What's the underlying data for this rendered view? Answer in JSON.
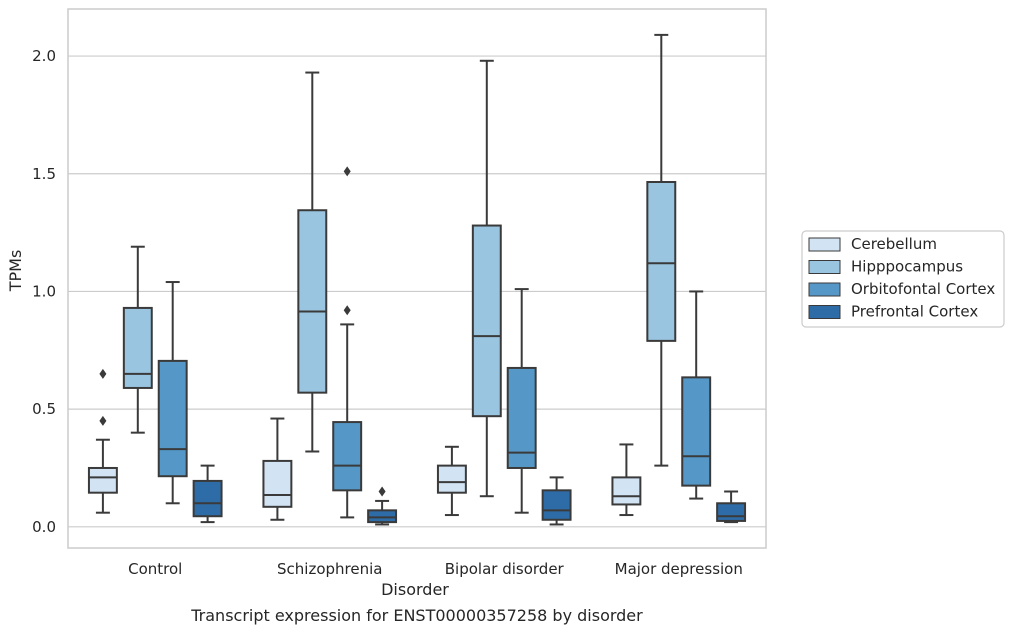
{
  "caption": "Transcript expression for ENST00000357258 by disorder",
  "chart_data": {
    "type": "box",
    "xlabel": "Disorder",
    "ylabel": "TPMs",
    "ylim": [
      -0.09,
      2.2
    ],
    "yticks": [
      0.0,
      0.5,
      1.0,
      1.5,
      2.0
    ],
    "ytick_labels": [
      "0.0",
      "0.5",
      "1.0",
      "1.5",
      "2.0"
    ],
    "grid": "horizontal",
    "legend_position": "right",
    "categories": [
      "Control",
      "Schizophrenia",
      "Bipolar disorder",
      "Major depression"
    ],
    "series": [
      {
        "name": "Cerebellum",
        "color": "#d2e3f3",
        "boxes": [
          {
            "whisker_low": 0.06,
            "q1": 0.145,
            "median": 0.21,
            "q3": 0.25,
            "whisker_high": 0.37,
            "outliers": [
              0.45,
              0.65
            ]
          },
          {
            "whisker_low": 0.03,
            "q1": 0.085,
            "median": 0.135,
            "q3": 0.28,
            "whisker_high": 0.46,
            "outliers": []
          },
          {
            "whisker_low": 0.05,
            "q1": 0.145,
            "median": 0.19,
            "q3": 0.26,
            "whisker_high": 0.34,
            "outliers": []
          },
          {
            "whisker_low": 0.05,
            "q1": 0.095,
            "median": 0.13,
            "q3": 0.21,
            "whisker_high": 0.35,
            "outliers": []
          }
        ]
      },
      {
        "name": "Hipppocampus",
        "color": "#9ac5e0",
        "boxes": [
          {
            "whisker_low": 0.4,
            "q1": 0.59,
            "median": 0.65,
            "q3": 0.93,
            "whisker_high": 1.19,
            "outliers": []
          },
          {
            "whisker_low": 0.32,
            "q1": 0.57,
            "median": 0.915,
            "q3": 1.345,
            "whisker_high": 1.93,
            "outliers": []
          },
          {
            "whisker_low": 0.13,
            "q1": 0.47,
            "median": 0.81,
            "q3": 1.28,
            "whisker_high": 1.98,
            "outliers": []
          },
          {
            "whisker_low": 0.26,
            "q1": 0.79,
            "median": 1.12,
            "q3": 1.465,
            "whisker_high": 2.09,
            "outliers": []
          }
        ]
      },
      {
        "name": "Orbitofontal Cortex",
        "color": "#5598c8",
        "boxes": [
          {
            "whisker_low": 0.1,
            "q1": 0.215,
            "median": 0.33,
            "q3": 0.705,
            "whisker_high": 1.04,
            "outliers": []
          },
          {
            "whisker_low": 0.04,
            "q1": 0.155,
            "median": 0.26,
            "q3": 0.445,
            "whisker_high": 0.86,
            "outliers": [
              0.92,
              1.51
            ]
          },
          {
            "whisker_low": 0.06,
            "q1": 0.25,
            "median": 0.315,
            "q3": 0.675,
            "whisker_high": 1.01,
            "outliers": []
          },
          {
            "whisker_low": 0.12,
            "q1": 0.175,
            "median": 0.3,
            "q3": 0.635,
            "whisker_high": 1.0,
            "outliers": []
          }
        ]
      },
      {
        "name": "Prefrontal Cortex",
        "color": "#2e6ca8",
        "boxes": [
          {
            "whisker_low": 0.02,
            "q1": 0.045,
            "median": 0.1,
            "q3": 0.195,
            "whisker_high": 0.26,
            "outliers": []
          },
          {
            "whisker_low": 0.01,
            "q1": 0.02,
            "median": 0.04,
            "q3": 0.07,
            "whisker_high": 0.11,
            "outliers": [
              0.15
            ]
          },
          {
            "whisker_low": 0.01,
            "q1": 0.03,
            "median": 0.07,
            "q3": 0.155,
            "whisker_high": 0.21,
            "outliers": []
          },
          {
            "whisker_low": 0.02,
            "q1": 0.025,
            "median": 0.045,
            "q3": 0.1,
            "whisker_high": 0.15,
            "outliers": []
          }
        ]
      }
    ]
  }
}
